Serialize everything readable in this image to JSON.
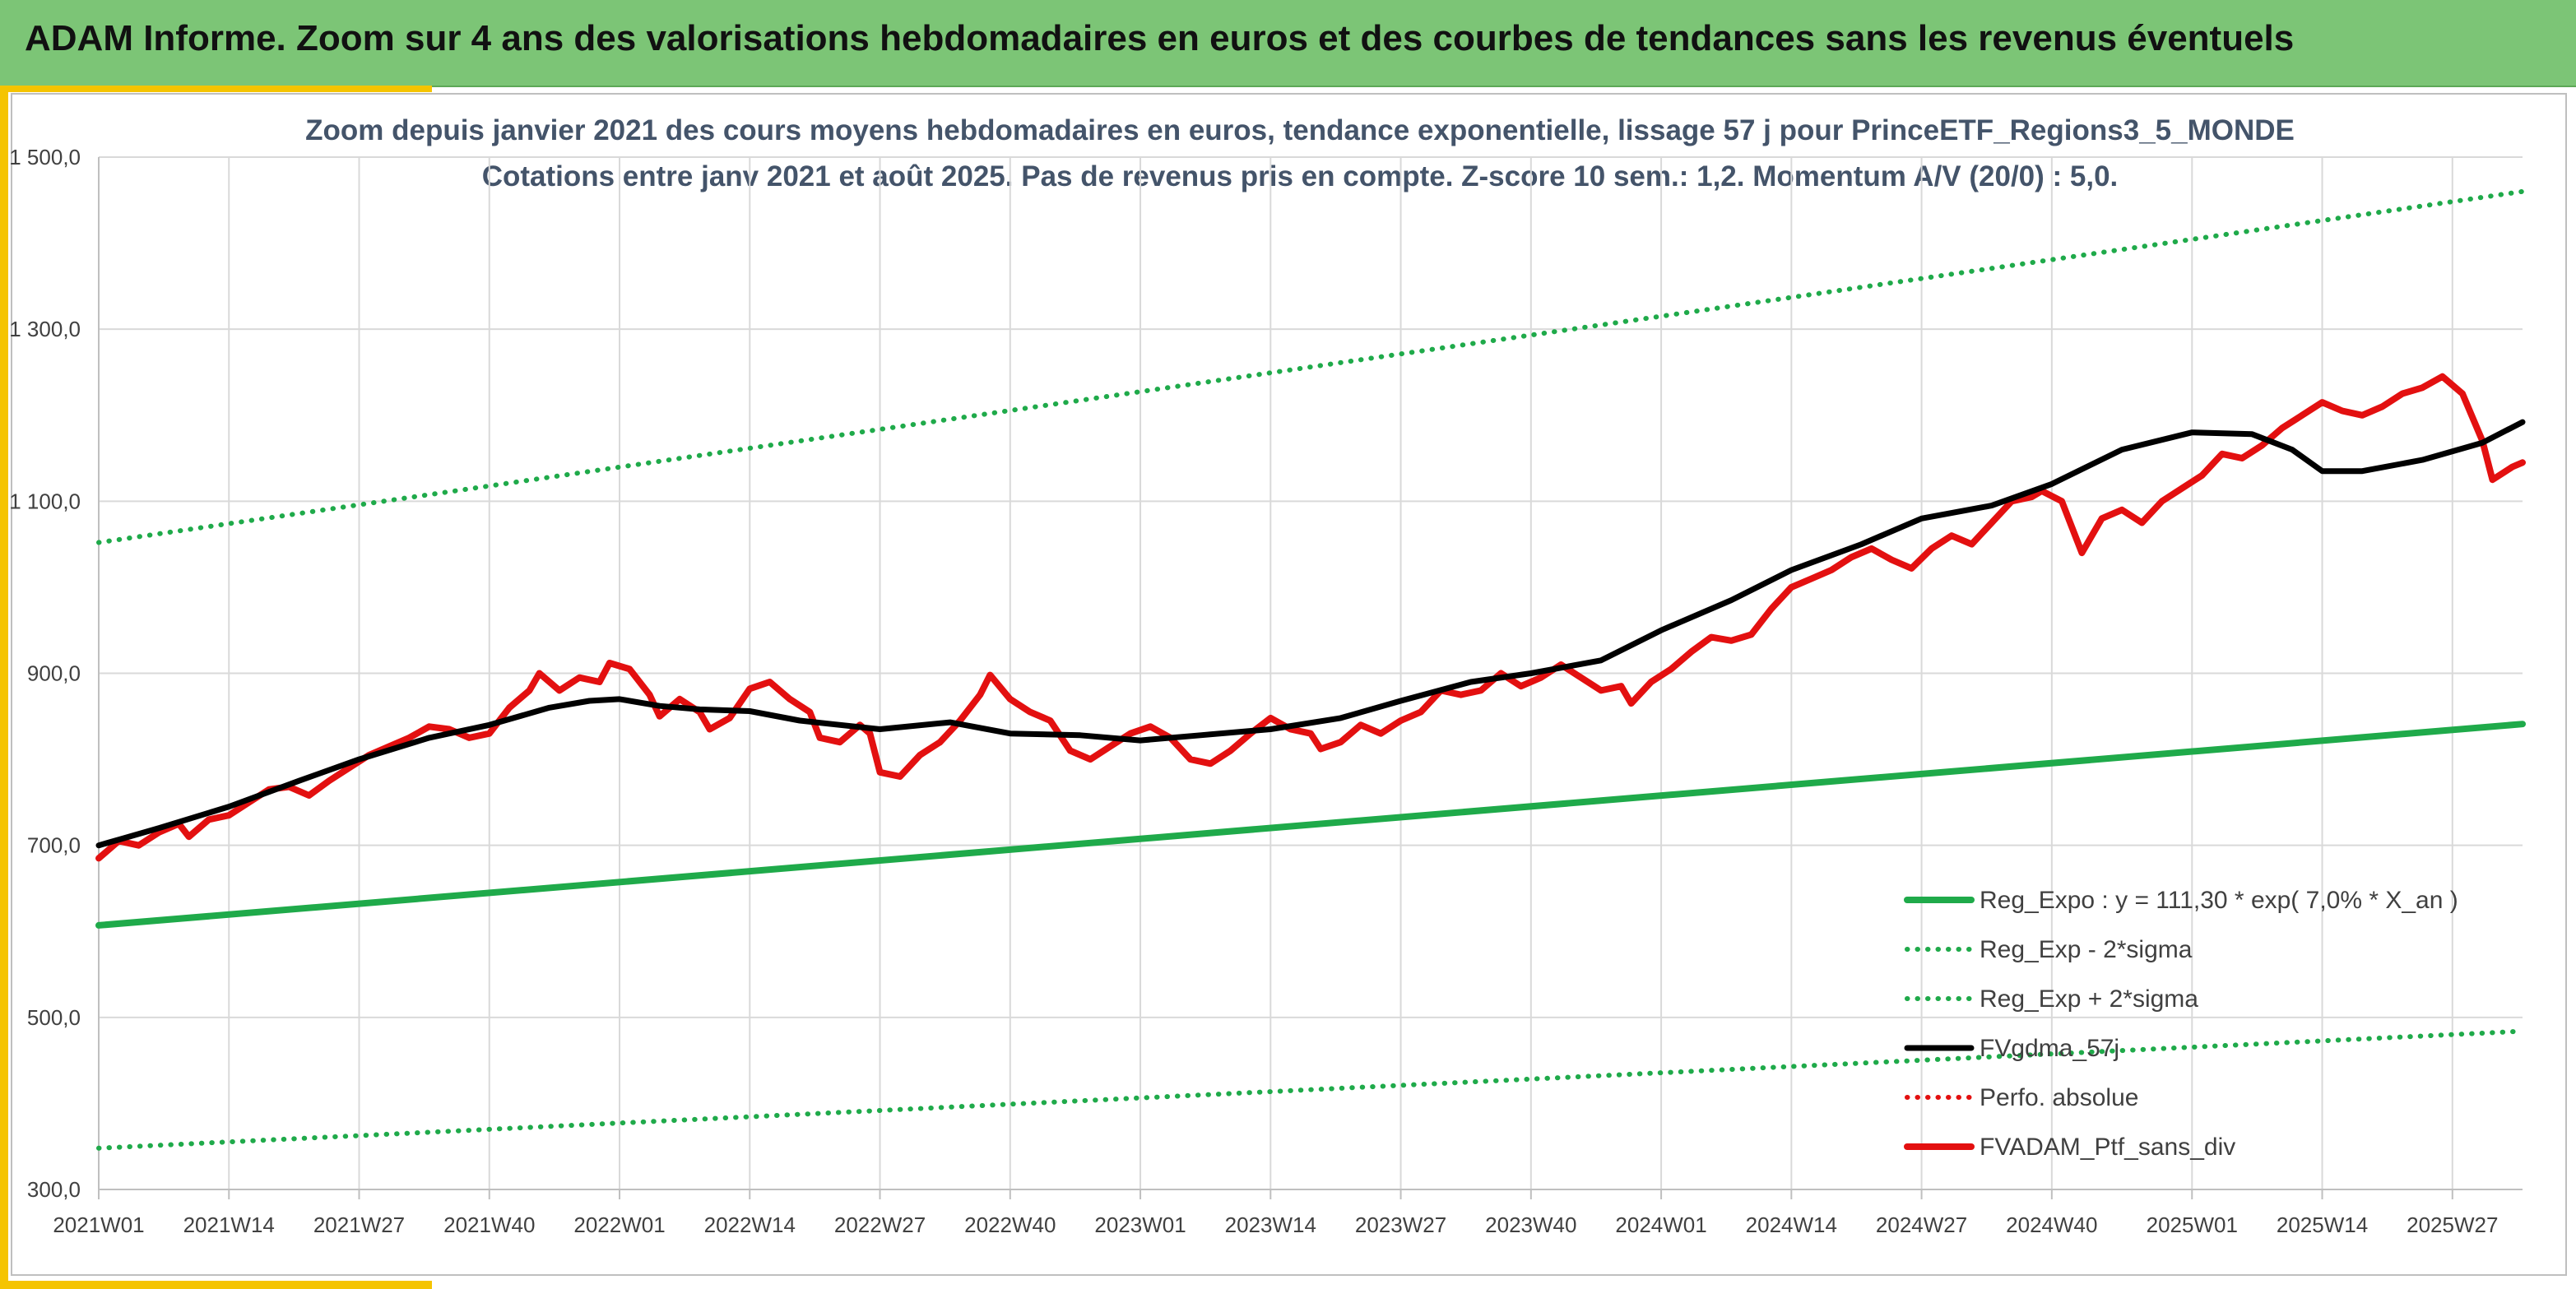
{
  "header": {
    "title": "ADAM Informe. Zoom sur 4 ans des valorisations hebdomadaires en euros et des courbes de tendances sans les revenus éventuels"
  },
  "colors": {
    "header_bg": "#7cc576",
    "accent_yellow": "#f5c400",
    "reg_expo": "#1faa4a",
    "sigma": "#1faa4a",
    "mma": "#000000",
    "perf_abs": "#e31010",
    "ptf": "#e31010",
    "grid": "#d9d9d9"
  },
  "chart_data": {
    "type": "line",
    "title": "Zoom depuis janvier 2021 des cours moyens hebdomadaires en euros, tendance exponentielle, lissage 57 j pour PrinceETF_Regions3_5_MONDE",
    "subtitle": "Cotations entre janv 2021 et août 2025. Pas de revenus pris en compte. Z-score 10 sem.: 1,2. Momentum A/V (20/0) : 5,0.",
    "xlabel": "",
    "ylabel": "",
    "ylim": [
      300,
      1500
    ],
    "yticks": [
      "300,0",
      "500,0",
      "700,0",
      "900,0",
      "1 100,0",
      "1 300,0",
      "1 500,0"
    ],
    "x_range_weeks": [
      0,
      242
    ],
    "x_tick_labels": [
      "2021W01",
      "2021W14",
      "2021W27",
      "2021W40",
      "2022W01",
      "2022W14",
      "2022W27",
      "2022W40",
      "2023W01",
      "2023W14",
      "2023W27",
      "2023W40",
      "2024W01",
      "2024W14",
      "2024W27",
      "2024W40",
      "2025W01",
      "2025W14",
      "2025W27"
    ],
    "x_tick_weeks": [
      0,
      13,
      26,
      39,
      52,
      65,
      78,
      91,
      104,
      117,
      130,
      143,
      156,
      169,
      182,
      195,
      209,
      222,
      235
    ],
    "grid": true,
    "legend_position": "bottom-right",
    "series": [
      {
        "name": "Reg_Expo : y = 111,30 * exp( 7,0% *  X_an )",
        "style": "solid-thick",
        "color": "#1faa4a",
        "points": [
          [
            0,
            607
          ],
          [
            242,
            841
          ]
        ]
      },
      {
        "name": "Reg_Exp - 2*sigma",
        "style": "dotted",
        "color": "#1faa4a",
        "points": [
          [
            0,
            348
          ],
          [
            242,
            484
          ]
        ]
      },
      {
        "name": "Reg_Exp + 2*sigma",
        "style": "dotted",
        "color": "#1faa4a",
        "points": [
          [
            0,
            1052
          ],
          [
            242,
            1460
          ]
        ]
      },
      {
        "name": "FVgdma_57j",
        "style": "solid",
        "color": "#000000",
        "points": [
          [
            0,
            700
          ],
          [
            6,
            720
          ],
          [
            13,
            745
          ],
          [
            20,
            775
          ],
          [
            26,
            800
          ],
          [
            33,
            825
          ],
          [
            39,
            840
          ],
          [
            45,
            860
          ],
          [
            49,
            868
          ],
          [
            52,
            870
          ],
          [
            56,
            862
          ],
          [
            60,
            858
          ],
          [
            65,
            856
          ],
          [
            70,
            845
          ],
          [
            78,
            835
          ],
          [
            85,
            843
          ],
          [
            91,
            830
          ],
          [
            98,
            828
          ],
          [
            104,
            822
          ],
          [
            110,
            828
          ],
          [
            117,
            835
          ],
          [
            124,
            848
          ],
          [
            130,
            868
          ],
          [
            137,
            890
          ],
          [
            143,
            900
          ],
          [
            150,
            915
          ],
          [
            156,
            950
          ],
          [
            163,
            985
          ],
          [
            169,
            1020
          ],
          [
            176,
            1050
          ],
          [
            182,
            1080
          ],
          [
            189,
            1095
          ],
          [
            195,
            1120
          ],
          [
            202,
            1160
          ],
          [
            209,
            1180
          ],
          [
            215,
            1178
          ],
          [
            219,
            1160
          ],
          [
            222,
            1135
          ],
          [
            226,
            1135
          ],
          [
            232,
            1148
          ],
          [
            238,
            1168
          ],
          [
            242,
            1192
          ]
        ]
      },
      {
        "name": "Perfo. absolue",
        "style": "dotted",
        "color": "#e31010",
        "points": []
      },
      {
        "name": "FVADAM_Ptf_sans_div",
        "style": "solid-thick",
        "color": "#e31010",
        "points": [
          [
            0,
            685
          ],
          [
            2,
            705
          ],
          [
            4,
            700
          ],
          [
            6,
            715
          ],
          [
            8,
            725
          ],
          [
            9,
            710
          ],
          [
            11,
            730
          ],
          [
            13,
            735
          ],
          [
            15,
            750
          ],
          [
            17,
            765
          ],
          [
            19,
            768
          ],
          [
            21,
            758
          ],
          [
            23,
            775
          ],
          [
            25,
            790
          ],
          [
            27,
            805
          ],
          [
            29,
            815
          ],
          [
            31,
            825
          ],
          [
            33,
            838
          ],
          [
            35,
            835
          ],
          [
            37,
            825
          ],
          [
            39,
            830
          ],
          [
            41,
            860
          ],
          [
            43,
            880
          ],
          [
            44,
            900
          ],
          [
            46,
            880
          ],
          [
            48,
            895
          ],
          [
            50,
            890
          ],
          [
            51,
            912
          ],
          [
            53,
            905
          ],
          [
            55,
            875
          ],
          [
            56,
            850
          ],
          [
            58,
            870
          ],
          [
            60,
            855
          ],
          [
            61,
            835
          ],
          [
            63,
            848
          ],
          [
            65,
            882
          ],
          [
            67,
            890
          ],
          [
            69,
            870
          ],
          [
            71,
            855
          ],
          [
            72,
            825
          ],
          [
            74,
            820
          ],
          [
            76,
            840
          ],
          [
            77,
            830
          ],
          [
            78,
            785
          ],
          [
            80,
            780
          ],
          [
            82,
            805
          ],
          [
            84,
            820
          ],
          [
            86,
            845
          ],
          [
            88,
            875
          ],
          [
            89,
            898
          ],
          [
            91,
            870
          ],
          [
            93,
            855
          ],
          [
            95,
            845
          ],
          [
            97,
            810
          ],
          [
            99,
            800
          ],
          [
            101,
            815
          ],
          [
            103,
            830
          ],
          [
            105,
            838
          ],
          [
            107,
            825
          ],
          [
            109,
            800
          ],
          [
            111,
            795
          ],
          [
            113,
            810
          ],
          [
            115,
            830
          ],
          [
            117,
            848
          ],
          [
            119,
            835
          ],
          [
            121,
            830
          ],
          [
            122,
            812
          ],
          [
            124,
            820
          ],
          [
            126,
            840
          ],
          [
            128,
            830
          ],
          [
            130,
            845
          ],
          [
            132,
            855
          ],
          [
            134,
            880
          ],
          [
            136,
            875
          ],
          [
            138,
            880
          ],
          [
            140,
            900
          ],
          [
            142,
            885
          ],
          [
            144,
            895
          ],
          [
            146,
            910
          ],
          [
            148,
            895
          ],
          [
            150,
            880
          ],
          [
            152,
            885
          ],
          [
            153,
            865
          ],
          [
            155,
            890
          ],
          [
            157,
            905
          ],
          [
            159,
            925
          ],
          [
            161,
            942
          ],
          [
            163,
            938
          ],
          [
            165,
            945
          ],
          [
            167,
            975
          ],
          [
            169,
            1000
          ],
          [
            171,
            1010
          ],
          [
            173,
            1020
          ],
          [
            175,
            1035
          ],
          [
            177,
            1045
          ],
          [
            179,
            1032
          ],
          [
            181,
            1022
          ],
          [
            183,
            1045
          ],
          [
            185,
            1060
          ],
          [
            187,
            1050
          ],
          [
            189,
            1075
          ],
          [
            191,
            1100
          ],
          [
            193,
            1105
          ],
          [
            194,
            1112
          ],
          [
            196,
            1100
          ],
          [
            198,
            1040
          ],
          [
            200,
            1080
          ],
          [
            202,
            1090
          ],
          [
            204,
            1075
          ],
          [
            206,
            1100
          ],
          [
            208,
            1115
          ],
          [
            210,
            1130
          ],
          [
            212,
            1155
          ],
          [
            214,
            1150
          ],
          [
            216,
            1165
          ],
          [
            218,
            1185
          ],
          [
            220,
            1200
          ],
          [
            222,
            1215
          ],
          [
            224,
            1205
          ],
          [
            226,
            1200
          ],
          [
            228,
            1210
          ],
          [
            230,
            1225
          ],
          [
            232,
            1232
          ],
          [
            234,
            1245
          ],
          [
            236,
            1225
          ],
          [
            238,
            1170
          ],
          [
            239,
            1125
          ],
          [
            241,
            1140
          ],
          [
            242,
            1145
          ]
        ]
      }
    ]
  }
}
